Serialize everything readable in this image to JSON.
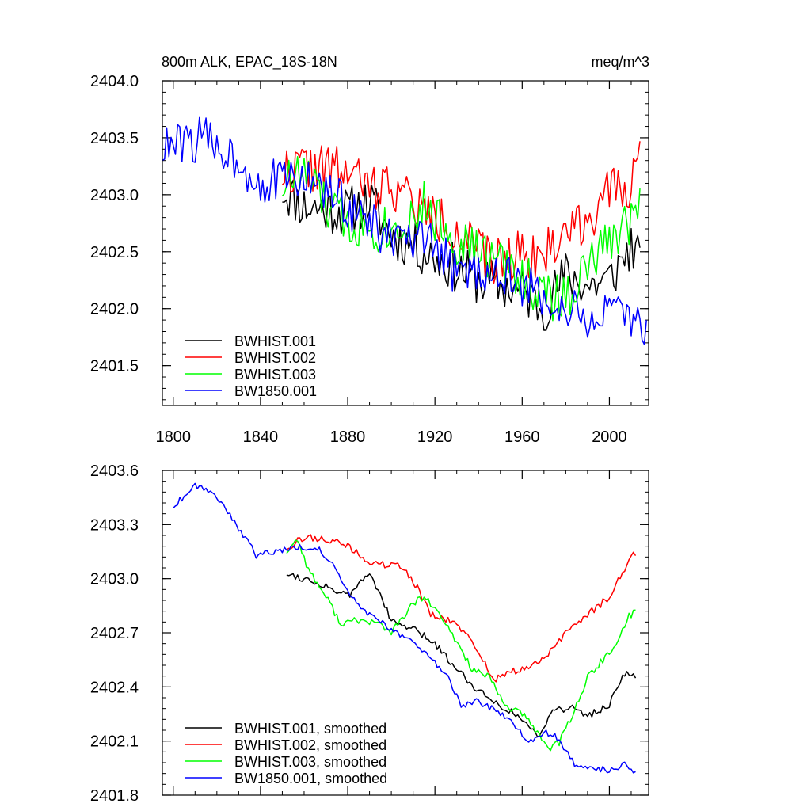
{
  "chart_data": [
    {
      "type": "line",
      "title": "800m ALK, EPAC_18S-18N",
      "units": "meq/m^3",
      "xlim": [
        1795,
        2018
      ],
      "ylim": [
        2401.15,
        2404.0
      ],
      "xticks": [
        1800,
        1840,
        1880,
        1920,
        1960,
        2000
      ],
      "yticks": [
        2401.5,
        2402.0,
        2402.5,
        2403.0,
        2403.5,
        2404.0
      ],
      "ytick_labels": [
        "2401.5",
        "2402.0",
        "2402.5",
        "2403.0",
        "2403.5",
        "2404.0"
      ],
      "legend_position": "bottom-left",
      "series": [
        {
          "name": "BWHIST.001",
          "color": "#000000",
          "x_start": 1850,
          "x_end": 2014,
          "anchors": [
            [
              1850,
              2403.05
            ],
            [
              1860,
              2402.9
            ],
            [
              1880,
              2402.85
            ],
            [
              1890,
              2402.95
            ],
            [
              1900,
              2402.65
            ],
            [
              1920,
              2402.45
            ],
            [
              1940,
              2402.25
            ],
            [
              1960,
              2402.15
            ],
            [
              1970,
              2402.0
            ],
            [
              1980,
              2402.3
            ],
            [
              1990,
              2402.2
            ],
            [
              2000,
              2402.25
            ],
            [
              2010,
              2402.55
            ],
            [
              2014,
              2402.4
            ]
          ],
          "noise": 0.22,
          "seed": 11
        },
        {
          "name": "BWHIST.002",
          "color": "#ff0000",
          "x_start": 1850,
          "x_end": 2014,
          "anchors": [
            [
              1850,
              2403.2
            ],
            [
              1860,
              2403.25
            ],
            [
              1880,
              2403.2
            ],
            [
              1890,
              2403.05
            ],
            [
              1900,
              2403.1
            ],
            [
              1915,
              2402.85
            ],
            [
              1930,
              2402.7
            ],
            [
              1945,
              2402.4
            ],
            [
              1960,
              2402.5
            ],
            [
              1970,
              2402.45
            ],
            [
              1980,
              2402.7
            ],
            [
              1990,
              2402.8
            ],
            [
              2000,
              2403.0
            ],
            [
              2010,
              2403.1
            ],
            [
              2014,
              2403.35
            ]
          ],
          "noise": 0.22,
          "seed": 22
        },
        {
          "name": "BWHIST.003",
          "color": "#00ff00",
          "x_start": 1850,
          "x_end": 2014,
          "anchors": [
            [
              1850,
              2403.1
            ],
            [
              1860,
              2403.2
            ],
            [
              1870,
              2402.9
            ],
            [
              1880,
              2402.75
            ],
            [
              1900,
              2402.7
            ],
            [
              1915,
              2402.9
            ],
            [
              1930,
              2402.6
            ],
            [
              1945,
              2402.45
            ],
            [
              1960,
              2402.3
            ],
            [
              1970,
              2402.1
            ],
            [
              1980,
              2402.1
            ],
            [
              1990,
              2402.35
            ],
            [
              2000,
              2402.6
            ],
            [
              2010,
              2402.8
            ],
            [
              2014,
              2402.95
            ]
          ],
          "noise": 0.22,
          "seed": 33
        },
        {
          "name": "BW1850.001",
          "color": "#0000ff",
          "x_start": 1795,
          "x_end": 2017,
          "anchors": [
            [
              1795,
              2403.4
            ],
            [
              1805,
              2403.45
            ],
            [
              1815,
              2403.5
            ],
            [
              1830,
              2403.3
            ],
            [
              1840,
              2403.1
            ],
            [
              1860,
              2403.15
            ],
            [
              1880,
              2402.9
            ],
            [
              1900,
              2402.6
            ],
            [
              1920,
              2402.55
            ],
            [
              1930,
              2402.3
            ],
            [
              1945,
              2402.35
            ],
            [
              1960,
              2402.2
            ],
            [
              1975,
              2402.05
            ],
            [
              1990,
              2401.9
            ],
            [
              2000,
              2401.95
            ],
            [
              2017,
              2401.85
            ]
          ],
          "noise": 0.2,
          "seed": 44
        }
      ]
    },
    {
      "type": "line",
      "xlim": [
        1795,
        2018
      ],
      "ylim": [
        2401.8,
        2403.6
      ],
      "xticks": [
        1800,
        1840,
        1880,
        1920,
        1960,
        2000
      ],
      "yticks": [
        2401.8,
        2402.1,
        2402.4,
        2402.7,
        2403.0,
        2403.3,
        2403.6
      ],
      "ytick_labels": [
        "2401.8",
        "2402.1",
        "2402.4",
        "2402.7",
        "2403.0",
        "2403.3",
        "2403.6"
      ],
      "legend_position": "bottom-left",
      "series": [
        {
          "name": "BWHIST.001, smoothed",
          "color": "#000000",
          "x_start": 1852,
          "x_end": 2012,
          "anchors": [
            [
              1852,
              2403.03
            ],
            [
              1860,
              2403.0
            ],
            [
              1870,
              2402.96
            ],
            [
              1880,
              2402.9
            ],
            [
              1886,
              2402.98
            ],
            [
              1890,
              2403.03
            ],
            [
              1895,
              2402.92
            ],
            [
              1900,
              2402.76
            ],
            [
              1910,
              2402.72
            ],
            [
              1920,
              2402.64
            ],
            [
              1930,
              2402.5
            ],
            [
              1940,
              2402.38
            ],
            [
              1950,
              2402.3
            ],
            [
              1960,
              2402.22
            ],
            [
              1967,
              2402.13
            ],
            [
              1975,
              2402.28
            ],
            [
              1983,
              2402.28
            ],
            [
              1990,
              2402.24
            ],
            [
              2000,
              2402.3
            ],
            [
              2006,
              2402.47
            ],
            [
              2010,
              2402.47
            ],
            [
              2012,
              2402.44
            ]
          ],
          "noise": 0.02,
          "seed": 55
        },
        {
          "name": "BWHIST.002, smoothed",
          "color": "#ff0000",
          "x_start": 1852,
          "x_end": 2012,
          "anchors": [
            [
              1852,
              2403.17
            ],
            [
              1860,
              2403.23
            ],
            [
              1870,
              2403.22
            ],
            [
              1880,
              2403.18
            ],
            [
              1890,
              2403.09
            ],
            [
              1900,
              2403.07
            ],
            [
              1905,
              2403.07
            ],
            [
              1912,
              2402.95
            ],
            [
              1918,
              2402.8
            ],
            [
              1930,
              2402.75
            ],
            [
              1940,
              2402.6
            ],
            [
              1947,
              2402.44
            ],
            [
              1955,
              2402.48
            ],
            [
              1960,
              2402.5
            ],
            [
              1967,
              2402.53
            ],
            [
              1975,
              2402.62
            ],
            [
              1983,
              2402.74
            ],
            [
              1990,
              2402.8
            ],
            [
              2000,
              2402.9
            ],
            [
              2010,
              2403.12
            ],
            [
              2012,
              2403.14
            ]
          ],
          "noise": 0.02,
          "seed": 66
        },
        {
          "name": "BWHIST.003, smoothed",
          "color": "#00ff00",
          "x_start": 1852,
          "x_end": 2012,
          "anchors": [
            [
              1852,
              2403.15
            ],
            [
              1857,
              2403.22
            ],
            [
              1862,
              2403.05
            ],
            [
              1870,
              2402.9
            ],
            [
              1877,
              2402.75
            ],
            [
              1885,
              2402.77
            ],
            [
              1895,
              2402.75
            ],
            [
              1900,
              2402.7
            ],
            [
              1910,
              2402.86
            ],
            [
              1915,
              2402.9
            ],
            [
              1922,
              2402.8
            ],
            [
              1930,
              2402.65
            ],
            [
              1937,
              2402.5
            ],
            [
              1945,
              2402.45
            ],
            [
              1952,
              2402.3
            ],
            [
              1960,
              2402.25
            ],
            [
              1967,
              2402.15
            ],
            [
              1972,
              2402.06
            ],
            [
              1977,
              2402.09
            ],
            [
              1985,
              2402.3
            ],
            [
              1990,
              2402.45
            ],
            [
              1997,
              2402.55
            ],
            [
              2003,
              2402.62
            ],
            [
              2008,
              2402.78
            ],
            [
              2012,
              2402.82
            ]
          ],
          "noise": 0.02,
          "seed": 77
        },
        {
          "name": "BW1850.001, smoothed",
          "color": "#0000ff",
          "x_start": 1800,
          "x_end": 2012,
          "anchors": [
            [
              1800,
              2403.4
            ],
            [
              1805,
              2403.46
            ],
            [
              1810,
              2403.52
            ],
            [
              1815,
              2403.5
            ],
            [
              1822,
              2403.43
            ],
            [
              1830,
              2403.28
            ],
            [
              1838,
              2403.13
            ],
            [
              1845,
              2403.15
            ],
            [
              1855,
              2403.17
            ],
            [
              1865,
              2403.18
            ],
            [
              1872,
              2403.1
            ],
            [
              1880,
              2402.92
            ],
            [
              1890,
              2402.8
            ],
            [
              1900,
              2402.72
            ],
            [
              1910,
              2402.65
            ],
            [
              1918,
              2402.55
            ],
            [
              1925,
              2402.48
            ],
            [
              1932,
              2402.3
            ],
            [
              1940,
              2402.32
            ],
            [
              1950,
              2402.25
            ],
            [
              1957,
              2402.18
            ],
            [
              1963,
              2402.1
            ],
            [
              1970,
              2402.15
            ],
            [
              1976,
              2402.12
            ],
            [
              1985,
              2401.95
            ],
            [
              1990,
              2401.95
            ],
            [
              2000,
              2401.94
            ],
            [
              2008,
              2401.97
            ],
            [
              2012,
              2401.93
            ]
          ],
          "noise": 0.018,
          "seed": 88
        }
      ]
    }
  ]
}
